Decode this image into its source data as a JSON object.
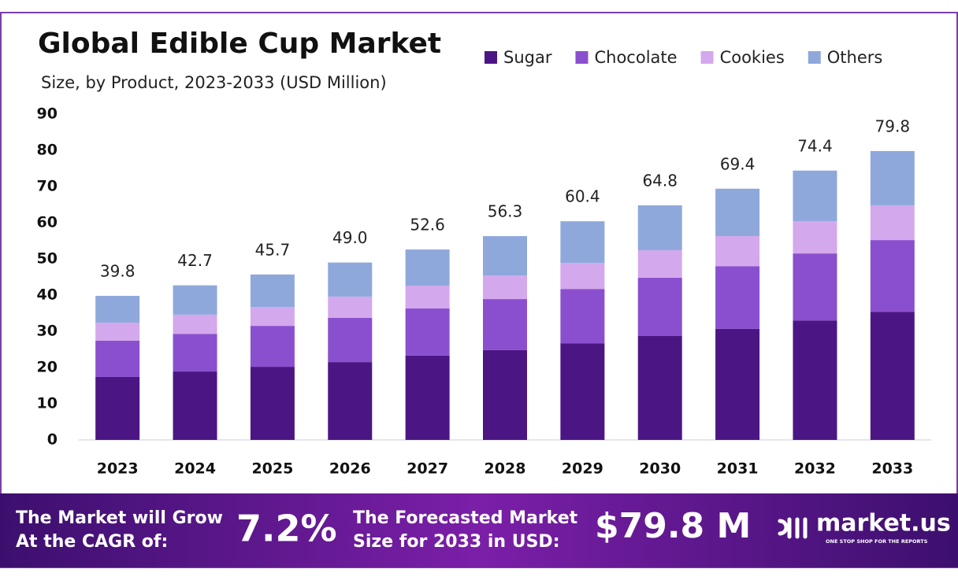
{
  "chart_data": {
    "type": "stacked_bar",
    "title": "Global Edible Cup Market",
    "subtitle": "Size, by Product, 2023-2033 (USD Million)",
    "categories": [
      "2023",
      "2024",
      "2025",
      "2026",
      "2027",
      "2028",
      "2029",
      "2030",
      "2031",
      "2032",
      "2033"
    ],
    "series": [
      {
        "name": "Sugar",
        "color": "#4b1684",
        "values": [
          17.4,
          18.9,
          20.2,
          21.5,
          23.3,
          24.8,
          26.7,
          28.7,
          30.7,
          33.0,
          35.4
        ]
      },
      {
        "name": "Chocolate",
        "color": "#8a4fcf",
        "values": [
          10.0,
          10.4,
          11.3,
          12.2,
          13.0,
          14.1,
          15.0,
          16.1,
          17.3,
          18.5,
          19.8
        ]
      },
      {
        "name": "Cookies",
        "color": "#d4a8ec",
        "values": [
          5.0,
          5.3,
          5.2,
          5.9,
          6.3,
          6.5,
          7.2,
          7.6,
          8.3,
          8.9,
          9.6
        ]
      },
      {
        "name": "Others",
        "color": "#8fa8dc",
        "values": [
          7.4,
          8.1,
          9.0,
          9.4,
          10.0,
          10.9,
          11.5,
          12.4,
          13.1,
          14.0,
          15.0
        ]
      }
    ],
    "totals": {
      "values": [
        39.8,
        42.7,
        45.7,
        49.0,
        52.6,
        56.3,
        60.4,
        64.8,
        69.4,
        74.4,
        79.8
      ],
      "value_labels": [
        "39.8",
        "42.7",
        "45.7",
        "49.0",
        "52.6",
        "56.3",
        "60.4",
        "64.8",
        "69.4",
        "74.4",
        "79.8"
      ]
    },
    "ylim": [
      0,
      90
    ],
    "yticks": [
      0,
      10,
      20,
      30,
      40,
      50,
      60,
      70,
      80,
      90
    ],
    "grid": false
  },
  "banner": {
    "cagr_line1": "The Market will Grow",
    "cagr_line2": "At the CAGR of:",
    "cagr_value": "7.2%",
    "forecast_line1": "The Forecasted Market",
    "forecast_line2": "Size for 2033 in USD:",
    "forecast_value": "$79.8 M",
    "logo": "market.us",
    "tagline": "ONE STOP SHOP FOR THE REPORTS"
  }
}
